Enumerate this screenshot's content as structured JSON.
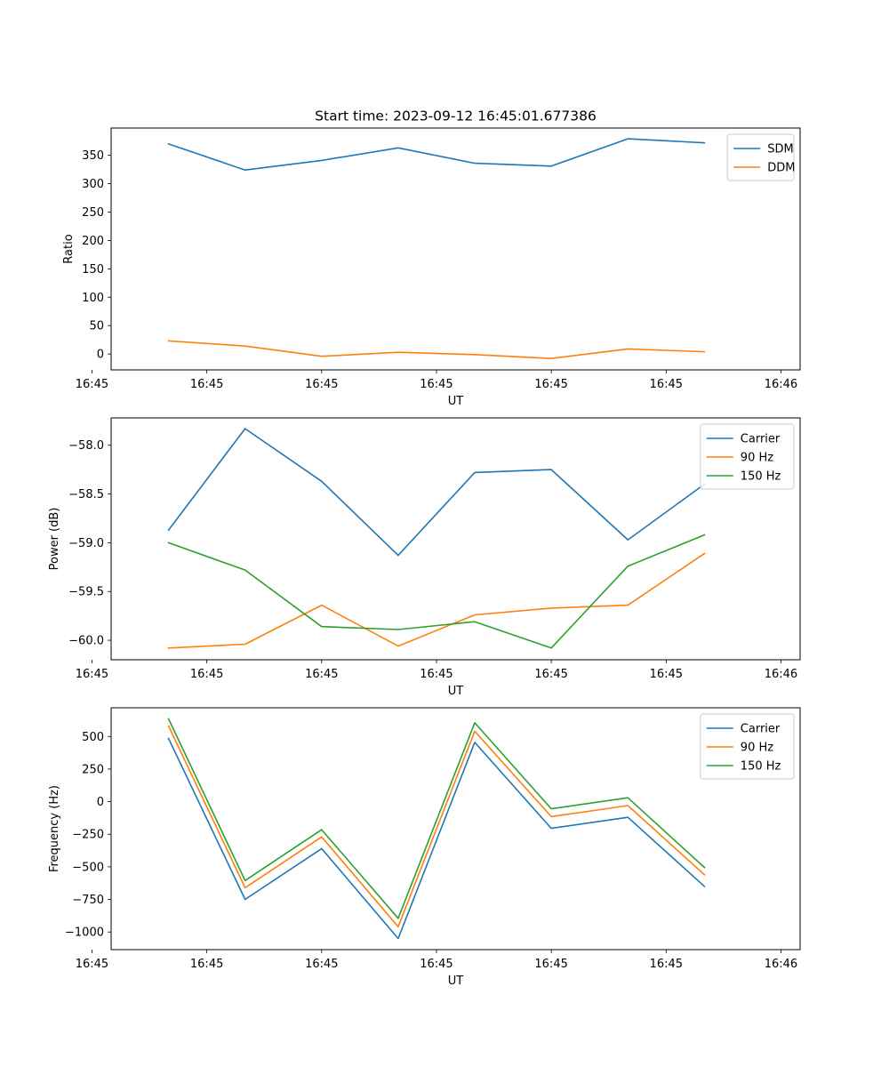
{
  "figure": {
    "title": "Start time: 2023-09-12 16:45:01.677386"
  },
  "colors": {
    "blue": "#1f77b4",
    "orange": "#ff7f0e",
    "green": "#2ca02c"
  },
  "chart_data": [
    {
      "type": "line",
      "title": "Start time: 2023-09-12 16:45:01.677386",
      "xlabel": "UT",
      "ylabel": "Ratio",
      "x": [
        1,
        2,
        3,
        4,
        5,
        6,
        7,
        8
      ],
      "xlim": [
        0.25,
        9.25
      ],
      "ylim": [
        -28,
        398
      ],
      "xticks": [
        0.0,
        1.5,
        3.0,
        4.5,
        6.0,
        7.5,
        9.0
      ],
      "xtick_labels": [
        "16:45",
        "16:45",
        "16:45",
        "16:45",
        "16:45",
        "16:45",
        "16:46"
      ],
      "yticks": [
        0,
        50,
        100,
        150,
        200,
        250,
        300,
        350
      ],
      "ytick_labels": [
        "0",
        "50",
        "100",
        "150",
        "200",
        "250",
        "300",
        "350"
      ],
      "legend": "top-right",
      "series": [
        {
          "name": "SDM",
          "color": "blue",
          "values": [
            370,
            324,
            341,
            363,
            336,
            331,
            379,
            372
          ]
        },
        {
          "name": "DDM",
          "color": "orange",
          "values": [
            23,
            14,
            -4,
            3,
            -1,
            -8,
            9,
            4
          ]
        }
      ]
    },
    {
      "type": "line",
      "title": "",
      "xlabel": "UT",
      "ylabel": "Power (dB)",
      "x": [
        1,
        2,
        3,
        4,
        5,
        6,
        7,
        8
      ],
      "xlim": [
        0.25,
        9.25
      ],
      "ylim": [
        -60.2,
        -57.72
      ],
      "xticks": [
        0.0,
        1.5,
        3.0,
        4.5,
        6.0,
        7.5,
        9.0
      ],
      "xtick_labels": [
        "16:45",
        "16:45",
        "16:45",
        "16:45",
        "16:45",
        "16:45",
        "16:46"
      ],
      "yticks": [
        -60.0,
        -59.5,
        -59.0,
        -58.5,
        -58.0
      ],
      "ytick_labels": [
        "−60.0",
        "−59.5",
        "−59.0",
        "−58.5",
        "−58.0"
      ],
      "legend": "top-right",
      "series": [
        {
          "name": "Carrier",
          "color": "blue",
          "values": [
            -58.87,
            -57.83,
            -58.37,
            -59.13,
            -58.28,
            -58.25,
            -58.97,
            -58.4
          ]
        },
        {
          "name": "90 Hz",
          "color": "orange",
          "values": [
            -60.08,
            -60.04,
            -59.64,
            -60.06,
            -59.74,
            -59.67,
            -59.64,
            -59.11
          ]
        },
        {
          "name": "150 Hz",
          "color": "green",
          "values": [
            -59.0,
            -59.28,
            -59.86,
            -59.89,
            -59.81,
            -60.08,
            -59.24,
            -58.92
          ]
        }
      ]
    },
    {
      "type": "line",
      "title": "",
      "xlabel": "UT",
      "ylabel": "Frequency (Hz)",
      "x": [
        1,
        2,
        3,
        4,
        5,
        6,
        7,
        8
      ],
      "xlim": [
        0.25,
        9.25
      ],
      "ylim": [
        -1135,
        720
      ],
      "xticks": [
        0.0,
        1.5,
        3.0,
        4.5,
        6.0,
        7.5,
        9.0
      ],
      "xtick_labels": [
        "16:45",
        "16:45",
        "16:45",
        "16:45",
        "16:45",
        "16:45",
        "16:46"
      ],
      "yticks": [
        -1000,
        -750,
        -500,
        -250,
        0,
        250,
        500
      ],
      "ytick_labels": [
        "−1000",
        "−750",
        "−500",
        "−250",
        "0",
        "250",
        "500"
      ],
      "legend": "top-right",
      "series": [
        {
          "name": "Carrier",
          "color": "blue",
          "values": [
            485,
            -750,
            -360,
            -1050,
            455,
            -205,
            -120,
            -650
          ]
        },
        {
          "name": "90 Hz",
          "color": "orange",
          "values": [
            580,
            -660,
            -270,
            -960,
            540,
            -115,
            -30,
            -560
          ]
        },
        {
          "name": "150 Hz",
          "color": "green",
          "values": [
            635,
            -605,
            -215,
            -895,
            605,
            -55,
            30,
            -505
          ]
        }
      ]
    }
  ]
}
